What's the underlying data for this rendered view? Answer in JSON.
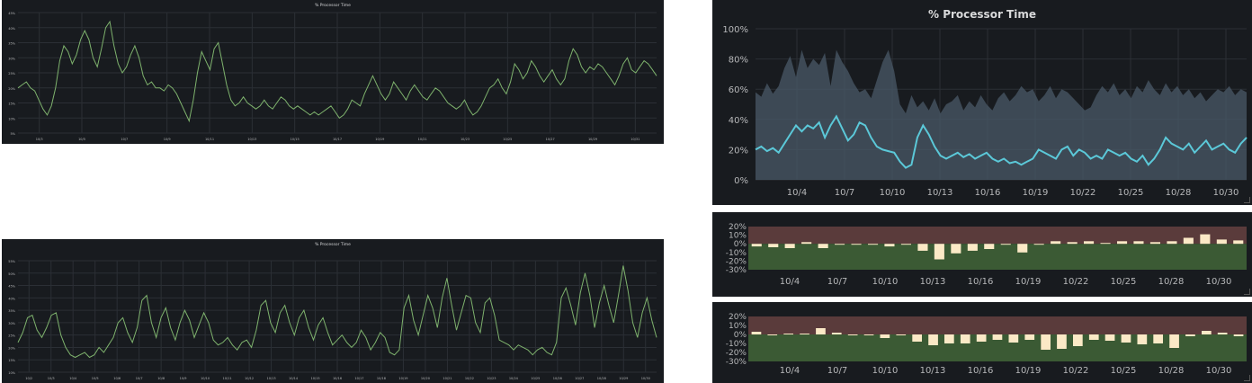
{
  "chart_data": [
    {
      "type": "line",
      "title": "% Processor Time",
      "yticks": [
        "5%",
        "10%",
        "15%",
        "20%",
        "25%",
        "30%",
        "35%",
        "40%",
        "45%"
      ],
      "ylim": [
        5,
        45
      ],
      "xticks": [
        "10/3",
        "10/5",
        "10/7",
        "10/9",
        "10/11",
        "10/13",
        "10/15",
        "10/17",
        "10/19",
        "10/21",
        "10/23",
        "10/25",
        "10/27",
        "10/29",
        "10/31"
      ],
      "series": [
        {
          "color": "#7eb26d",
          "values": [
            20,
            21,
            22,
            20,
            19,
            16,
            13,
            11,
            14,
            20,
            29,
            34,
            32,
            28,
            31,
            36,
            39,
            36,
            30,
            27,
            33,
            40,
            42,
            34,
            28,
            25,
            27,
            31,
            34,
            30,
            24,
            21,
            22,
            20,
            20,
            19,
            21,
            20,
            18,
            15,
            12,
            9,
            16,
            25,
            32,
            29,
            26,
            33,
            35,
            28,
            21,
            16,
            14,
            15,
            17,
            15,
            14,
            13,
            14,
            16,
            14,
            13,
            15,
            17,
            16,
            14,
            13,
            14,
            13,
            12,
            11,
            12,
            11,
            12,
            13,
            14,
            12,
            10,
            11,
            13,
            16,
            15,
            14,
            18,
            21,
            24,
            21,
            18,
            16,
            18,
            22,
            20,
            18,
            16,
            19,
            21,
            19,
            17,
            16,
            18,
            20,
            19,
            17,
            15,
            14,
            13,
            14,
            16,
            13,
            11,
            12,
            14,
            17,
            20,
            21,
            23,
            20,
            18,
            22,
            28,
            26,
            23,
            25,
            29,
            27,
            24,
            22,
            24,
            26,
            23,
            21,
            23,
            29,
            33,
            31,
            27,
            25,
            27,
            26,
            28,
            27,
            25,
            23,
            21,
            24,
            28,
            30,
            26,
            25,
            27,
            29,
            28,
            26,
            24
          ]
        }
      ]
    },
    {
      "type": "line",
      "title": "% Processor Time",
      "yticks": [
        "10%",
        "15%",
        "20%",
        "25%",
        "30%",
        "35%",
        "40%",
        "45%",
        "50%",
        "55%"
      ],
      "ylim": [
        10,
        55
      ],
      "xticks": [
        "10/2",
        "10/3",
        "10/4",
        "10/5",
        "10/6",
        "10/7",
        "10/8",
        "10/9",
        "10/10",
        "10/11",
        "10/12",
        "10/13",
        "10/14",
        "10/15",
        "10/16",
        "10/17",
        "10/18",
        "10/19",
        "10/20",
        "10/21",
        "10/22",
        "10/23",
        "10/24",
        "10/25",
        "10/26",
        "10/27",
        "10/28",
        "10/29",
        "10/30"
      ],
      "series": [
        {
          "color": "#7eb26d",
          "values": [
            22,
            26,
            32,
            33,
            27,
            24,
            28,
            33,
            34,
            25,
            20,
            17,
            16,
            17,
            18,
            16,
            17,
            20,
            18,
            21,
            24,
            30,
            32,
            26,
            22,
            28,
            39,
            41,
            30,
            24,
            32,
            36,
            28,
            23,
            30,
            35,
            31,
            24,
            29,
            34,
            30,
            23,
            21,
            22,
            24,
            21,
            19,
            22,
            23,
            20,
            27,
            37,
            39,
            30,
            26,
            34,
            37,
            30,
            25,
            32,
            35,
            28,
            23,
            29,
            32,
            26,
            21,
            23,
            25,
            22,
            20,
            22,
            27,
            24,
            19,
            22,
            26,
            24,
            18,
            17,
            19,
            36,
            41,
            31,
            25,
            33,
            41,
            36,
            28,
            40,
            48,
            37,
            27,
            34,
            41,
            40,
            30,
            26,
            38,
            40,
            33,
            23,
            22,
            21,
            19,
            21,
            20,
            19,
            17,
            19,
            20,
            18,
            17,
            22,
            40,
            44,
            37,
            29,
            42,
            50,
            41,
            28,
            38,
            45,
            37,
            30,
            41,
            53,
            43,
            30,
            24,
            34,
            40,
            31,
            24
          ]
        }
      ]
    },
    {
      "type": "area",
      "title": "% Processor Time",
      "yticks": [
        "0%",
        "20%",
        "40%",
        "60%",
        "80%",
        "100%"
      ],
      "ylim": [
        0,
        100
      ],
      "xticks": [
        "10/4",
        "10/7",
        "10/10",
        "10/13",
        "10/16",
        "10/19",
        "10/22",
        "10/25",
        "10/28",
        "10/30"
      ],
      "series": [
        {
          "name": "",
          "color": "#4a5968",
          "values": [
            58,
            55,
            64,
            57,
            62,
            74,
            82,
            68,
            86,
            74,
            80,
            76,
            84,
            62,
            86,
            78,
            72,
            64,
            58,
            60,
            54,
            66,
            78,
            86,
            72,
            50,
            44,
            56,
            48,
            52,
            46,
            54,
            44,
            50,
            52,
            56,
            46,
            52,
            48,
            56,
            50,
            46,
            54,
            58,
            52,
            56,
            62,
            58,
            60,
            52,
            56,
            62,
            54,
            60,
            58,
            54,
            50,
            46,
            48,
            56,
            62,
            58,
            64,
            56,
            60,
            54,
            62,
            58,
            66,
            60,
            56,
            64,
            58,
            62,
            56,
            60,
            54,
            58,
            52,
            56,
            60,
            58,
            62,
            56,
            60,
            58
          ]
        },
        {
          "name": "",
          "color": "#5bc8d8",
          "values": [
            20,
            22,
            19,
            21,
            18,
            24,
            30,
            36,
            32,
            36,
            34,
            38,
            28,
            36,
            42,
            34,
            26,
            30,
            38,
            36,
            28,
            22,
            20,
            19,
            18,
            12,
            8,
            10,
            28,
            36,
            30,
            22,
            16,
            14,
            16,
            18,
            15,
            17,
            14,
            16,
            18,
            14,
            12,
            14,
            11,
            12,
            10,
            12,
            14,
            20,
            18,
            16,
            14,
            20,
            22,
            16,
            20,
            18,
            14,
            16,
            14,
            20,
            18,
            16,
            18,
            14,
            12,
            16,
            10,
            14,
            20,
            28,
            24,
            22,
            20,
            24,
            18,
            22,
            26,
            20,
            22,
            24,
            20,
            18,
            24,
            28
          ]
        }
      ]
    },
    {
      "type": "bar",
      "yticks": [
        "20%",
        "10%",
        "0%",
        "-10%",
        "-20%",
        "-30%"
      ],
      "ylim": [
        -30,
        20
      ],
      "xticks": [
        "10/4",
        "10/7",
        "10/10",
        "10/13",
        "10/16",
        "10/19",
        "10/22",
        "10/25",
        "10/28",
        "10/30"
      ],
      "values": [
        -3,
        -4,
        -5,
        2,
        -5,
        -1,
        0,
        0,
        -3,
        0,
        -8,
        -18,
        -11,
        -8,
        -6,
        -1,
        -10,
        -1,
        3,
        2,
        3,
        1,
        3,
        3,
        2,
        3,
        7,
        11,
        5,
        4
      ]
    },
    {
      "type": "bar",
      "yticks": [
        "20%",
        "10%",
        "0%",
        "-10%",
        "-20%",
        "-30%"
      ],
      "ylim": [
        -30,
        20
      ],
      "xticks": [
        "10/4",
        "10/7",
        "10/10",
        "10/13",
        "10/16",
        "10/19",
        "10/22",
        "10/25",
        "10/28",
        "10/30"
      ],
      "values": [
        3,
        -1,
        1,
        1,
        7,
        2,
        0,
        -1,
        -4,
        -1,
        -8,
        -12,
        -10,
        -10,
        -8,
        -6,
        -9,
        -6,
        -17,
        -16,
        -13,
        -6,
        -7,
        -9,
        -11,
        -10,
        -15,
        -2,
        4,
        2,
        -2
      ]
    }
  ]
}
